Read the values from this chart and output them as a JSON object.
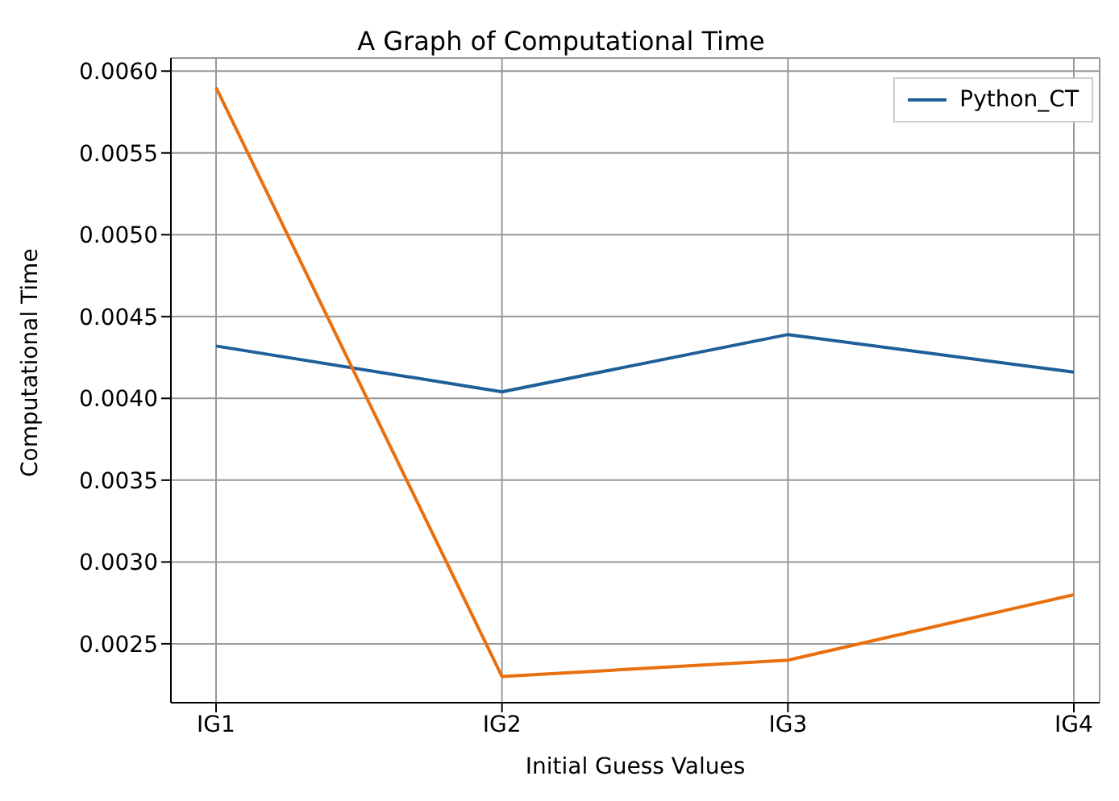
{
  "chart_data": {
    "type": "line",
    "title": "A Graph of Computational Time",
    "xlabel": "Initial Guess Values",
    "ylabel": "Computational Time",
    "categories": [
      "IG1",
      "IG2",
      "IG3",
      "IG4"
    ],
    "series": [
      {
        "name": "Python_CT",
        "color": "#1f5f99",
        "values": [
          0.00432,
          0.00404,
          0.00439,
          0.00416
        ]
      },
      {
        "color": "#e8700f",
        "values": [
          0.0059,
          0.0023,
          0.0024,
          0.0028
        ]
      }
    ],
    "ylim": [
      0.00214,
      0.00608
    ],
    "yticks": [
      {
        "value": 0.0025,
        "label": "0.0025"
      },
      {
        "value": 0.003,
        "label": "0.0030"
      },
      {
        "value": 0.0035,
        "label": "0.0035"
      },
      {
        "value": 0.004,
        "label": "0.0040"
      },
      {
        "value": 0.0045,
        "label": "0.0045"
      },
      {
        "value": 0.005,
        "label": "0.0050"
      },
      {
        "value": 0.0055,
        "label": "0.0055"
      },
      {
        "value": 0.006,
        "label": "0.0060"
      }
    ],
    "grid": true,
    "legend": "top right",
    "marker": "none",
    "line_style": "solid"
  }
}
